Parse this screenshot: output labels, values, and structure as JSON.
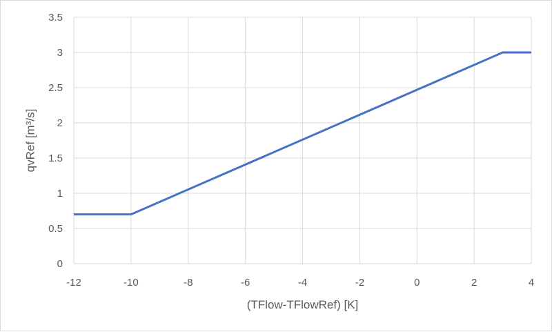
{
  "chart_data": {
    "type": "line",
    "title": "",
    "xlabel": "(TFlow-TFlowRef) [K]",
    "ylabel": "qvRef [m³/s]",
    "xlim": [
      -12,
      4
    ],
    "ylim": [
      0,
      3.5
    ],
    "x_ticks": [
      "-12",
      "-10",
      "-8",
      "-6",
      "-4",
      "-2",
      "0",
      "2",
      "4"
    ],
    "x_tick_values": [
      -12,
      -10,
      -8,
      -6,
      -4,
      -2,
      0,
      2,
      4
    ],
    "y_ticks": [
      "0",
      "0.5",
      "1",
      "1.5",
      "2",
      "2.5",
      "3",
      "3.5"
    ],
    "y_tick_values": [
      0,
      0.5,
      1,
      1.5,
      2,
      2.5,
      3,
      3.5
    ],
    "grid": true,
    "legend": "none",
    "series": [
      {
        "color": "#4472c4",
        "x": [
          -12,
          -10,
          3,
          4
        ],
        "y": [
          0.7,
          0.7,
          3.0,
          3.0
        ]
      }
    ]
  }
}
